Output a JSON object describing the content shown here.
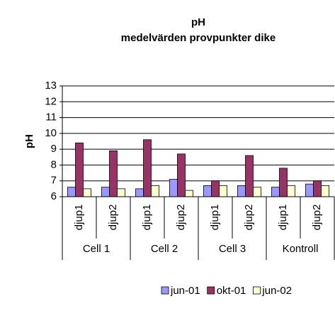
{
  "chart_data": {
    "type": "bar",
    "title": "pH",
    "subtitle": "medelvärden provpunkter dike",
    "y_label": "pH",
    "categories": [
      "djup1",
      "djup2",
      "djup1",
      "djup2",
      "djup1",
      "djup2",
      "djup1",
      "djup2"
    ],
    "category_groups": [
      "Cell 1",
      "Cell 2",
      "Cell 3",
      "Kontroll"
    ],
    "series": [
      {
        "name": "jun-01",
        "color": "#9999ff",
        "values": [
          6.6,
          6.6,
          6.5,
          7.1,
          6.7,
          6.7,
          6.6,
          6.8
        ]
      },
      {
        "name": "okt-01",
        "color": "#993366",
        "values": [
          9.4,
          8.9,
          9.6,
          8.7,
          7.0,
          8.6,
          7.8,
          7.0
        ]
      },
      {
        "name": "jun-02",
        "color": "#ffffcc",
        "values": [
          6.5,
          6.5,
          6.7,
          6.4,
          6.7,
          6.6,
          6.7,
          6.7
        ]
      }
    ],
    "ylim": [
      6,
      13
    ],
    "yticks": [
      6,
      7,
      8,
      9,
      10,
      11,
      12,
      13
    ],
    "grid": true,
    "legend": "bottom"
  }
}
